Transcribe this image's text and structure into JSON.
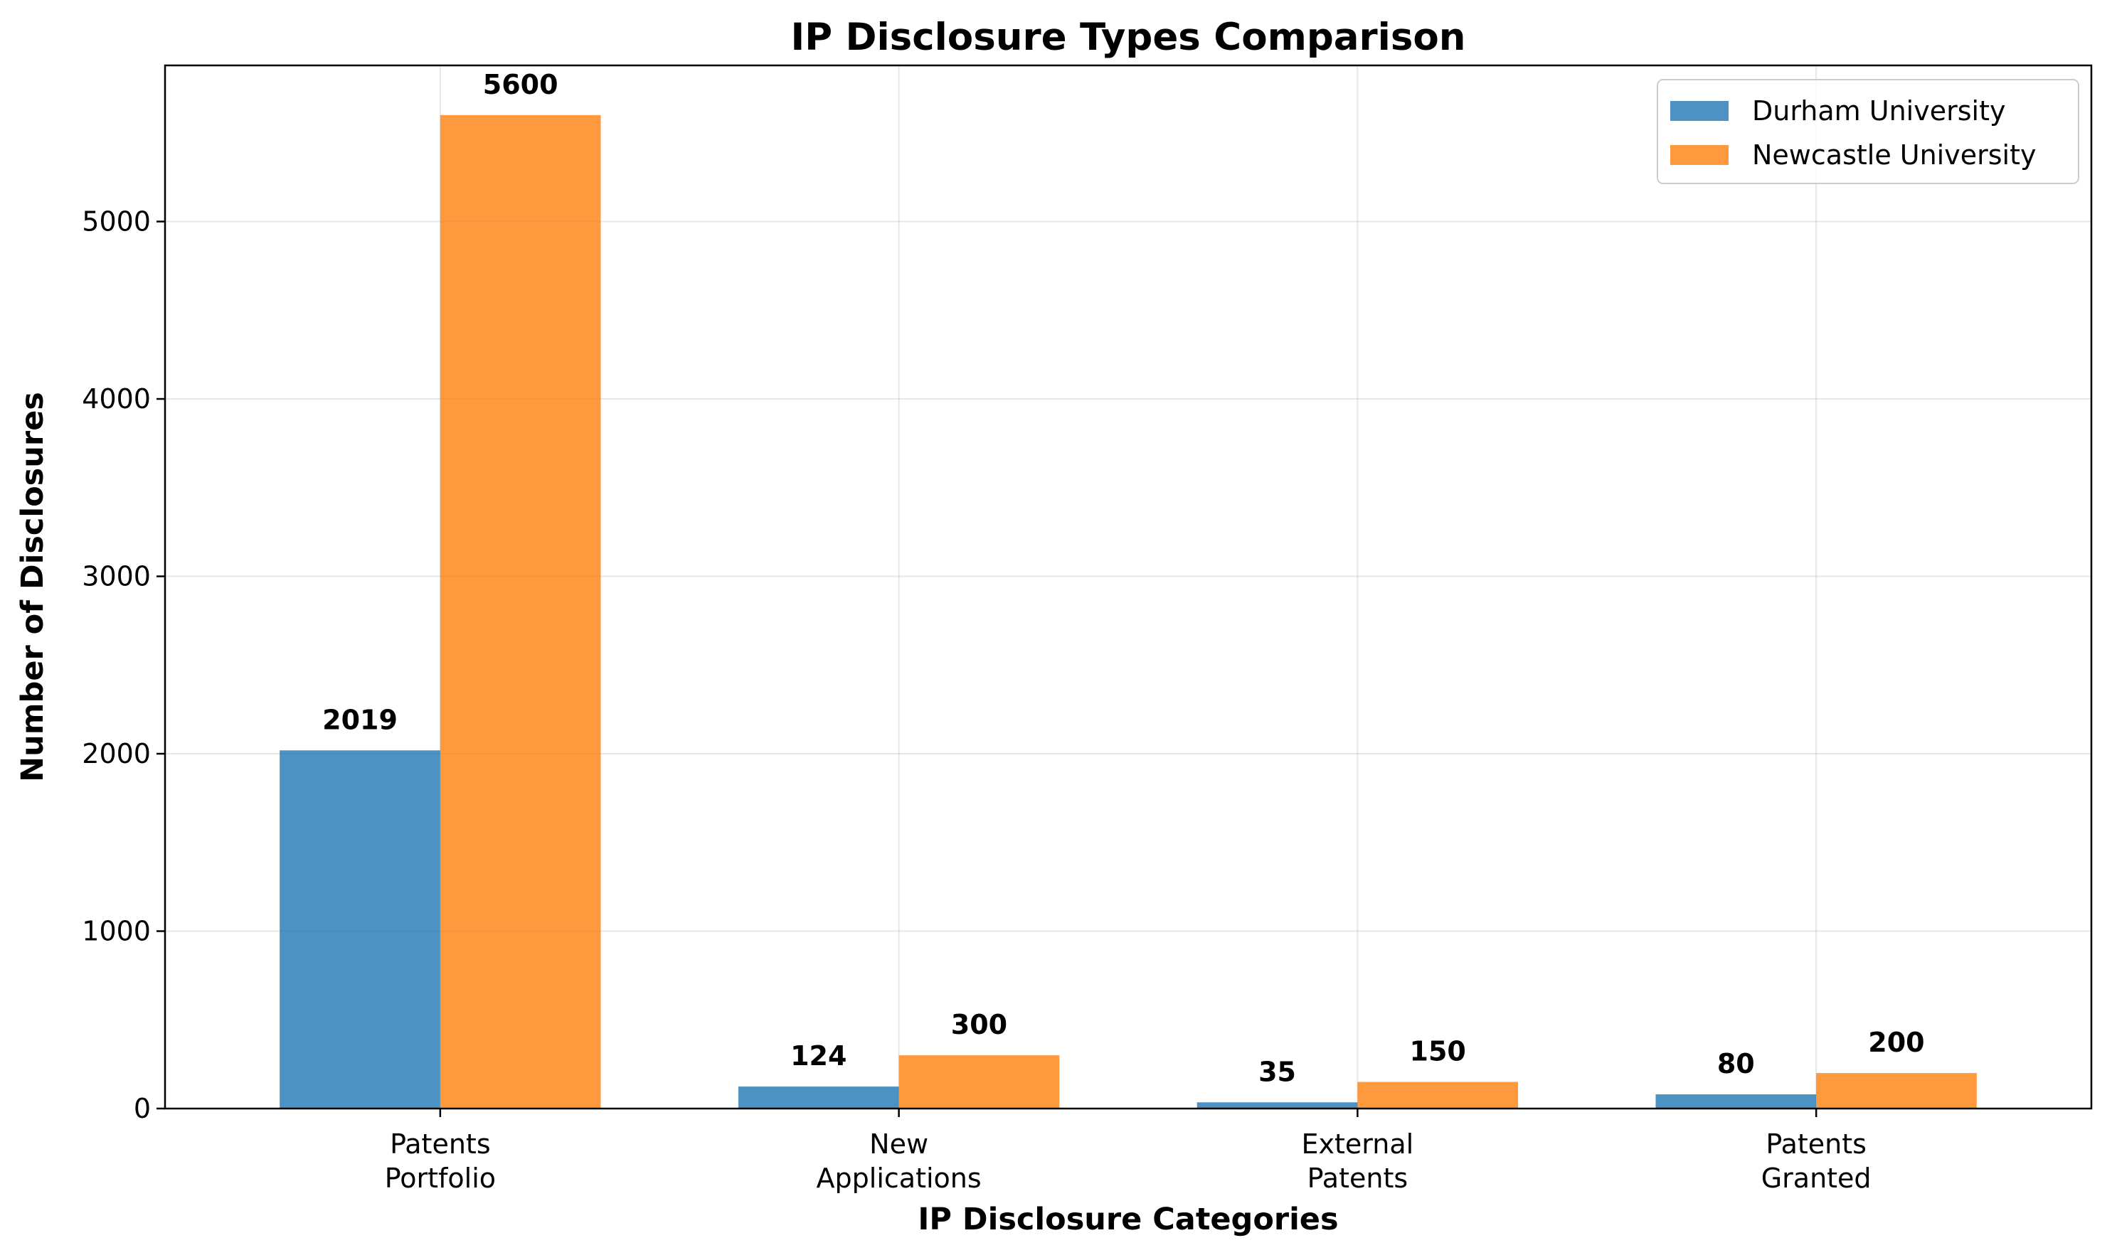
{
  "chart_data": {
    "type": "bar",
    "title": "IP Disclosure Types Comparison",
    "xlabel": "IP Disclosure Categories",
    "ylabel": "Number of Disclosures",
    "categories": [
      [
        "Patents",
        "Portfolio"
      ],
      [
        "New",
        "Applications"
      ],
      [
        "External",
        "Patents"
      ],
      [
        "Patents",
        "Granted"
      ]
    ],
    "series": [
      {
        "name": "Durham University",
        "values": [
          2019,
          124,
          35,
          80
        ],
        "color": "#1f77b4"
      },
      {
        "name": "Newcastle University",
        "values": [
          5600,
          300,
          150,
          200
        ],
        "color": "#ff7f0e"
      }
    ],
    "ylim": [
      0,
      5880
    ],
    "yticks": [
      0,
      1000,
      2000,
      3000,
      4000,
      5000
    ],
    "grid": true,
    "legend_position": "top-right",
    "data_labels": true
  }
}
